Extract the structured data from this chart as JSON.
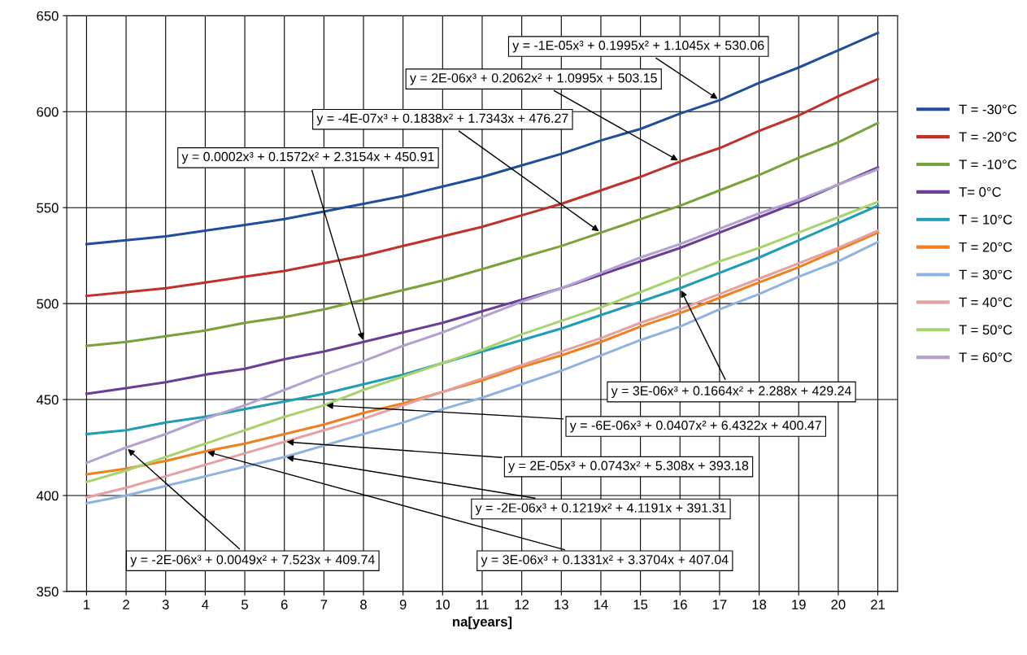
{
  "chart_data": {
    "type": "line",
    "xlabel": "na[years]",
    "categories": [
      "1",
      "2",
      "3",
      "4",
      "5",
      "6",
      "7",
      "8",
      "9",
      "10",
      "11",
      "12",
      "13",
      "14",
      "15",
      "16",
      "17",
      "18",
      "19",
      "20",
      "21"
    ],
    "ylim": [
      350,
      650
    ],
    "yticks": [
      350,
      400,
      450,
      500,
      550,
      600,
      650
    ],
    "grid": true,
    "legend": "right",
    "marker": "none",
    "line_style": "solid",
    "series": [
      {
        "name": "T = -30°C",
        "color": "#1f4e9c",
        "values": [
          531,
          533,
          535,
          538,
          541,
          544,
          548,
          552,
          556,
          561,
          566,
          572,
          578,
          585,
          591,
          599,
          606,
          615,
          623,
          632,
          641
        ]
      },
      {
        "name": "T = -20°C",
        "color": "#c0312b",
        "values": [
          504,
          506,
          508,
          511,
          514,
          517,
          521,
          525,
          530,
          535,
          540,
          546,
          552,
          559,
          566,
          574,
          581,
          590,
          598,
          608,
          617
        ]
      },
      {
        "name": "T = -10°C",
        "color": "#77a33a",
        "values": [
          478,
          480,
          483,
          486,
          490,
          493,
          497,
          502,
          507,
          512,
          518,
          524,
          530,
          537,
          544,
          551,
          559,
          567,
          576,
          584,
          594
        ]
      },
      {
        "name": "T= 0°C",
        "color": "#6a3e98",
        "values": [
          453,
          456,
          459,
          463,
          466,
          471,
          475,
          480,
          485,
          490,
          496,
          502,
          508,
          515,
          522,
          529,
          537,
          545,
          553,
          562,
          571
        ]
      },
      {
        "name": "T = 10°C",
        "color": "#1e9db5",
        "values": [
          432,
          434,
          438,
          441,
          445,
          449,
          453,
          458,
          463,
          469,
          475,
          481,
          487,
          494,
          501,
          508,
          516,
          524,
          533,
          542,
          551
        ]
      },
      {
        "name": "T = 20°C",
        "color": "#f07f1e",
        "values": [
          411,
          414,
          418,
          423,
          427,
          432,
          437,
          443,
          448,
          454,
          460,
          467,
          473,
          480,
          488,
          495,
          503,
          511,
          519,
          528,
          537
        ]
      },
      {
        "name": "T = 30°C",
        "color": "#8fb3e0",
        "values": [
          396,
          400,
          405,
          410,
          415,
          420,
          426,
          432,
          438,
          445,
          451,
          458,
          465,
          473,
          481,
          488,
          497,
          505,
          514,
          522,
          532
        ]
      },
      {
        "name": "T = 40°C",
        "color": "#e6a0a0",
        "values": [
          399,
          404,
          410,
          416,
          422,
          428,
          434,
          440,
          447,
          454,
          461,
          468,
          475,
          482,
          490,
          497,
          505,
          513,
          521,
          529,
          538
        ]
      },
      {
        "name": "T = 50°C",
        "color": "#a8d26e",
        "values": [
          407,
          413,
          420,
          427,
          434,
          441,
          447,
          455,
          462,
          469,
          476,
          484,
          491,
          498,
          506,
          514,
          522,
          529,
          537,
          545,
          553
        ]
      },
      {
        "name": "T = 60°C",
        "color": "#b3a2d0",
        "values": [
          417,
          425,
          432,
          440,
          447,
          455,
          463,
          470,
          478,
          485,
          493,
          501,
          508,
          516,
          524,
          531,
          539,
          547,
          554,
          562,
          570
        ]
      }
    ],
    "annotations": [
      {
        "text": "y = -1E-05x³ + 0.1995x² + 1.1045x + 530.06",
        "x": "17",
        "y": 606
      },
      {
        "text": "y = 2E-06x³ + 0.2062x² + 1.0995x + 503.15",
        "x": "16",
        "y": 574
      },
      {
        "text": "y = -4E-07x³ + 0.1838x² + 1.7343x + 476.27",
        "x": "14",
        "y": 537
      },
      {
        "text": "y = 0.0002x³ + 0.1572x² + 2.3154x + 450.91",
        "x": "8",
        "y": 480
      },
      {
        "text": "y = 3E-06x³ + 0.1664x² + 2.288x + 429.24",
        "x": "16",
        "y": 508
      },
      {
        "text": "y = -6E-06x³ + 0.0407x² + 6.4322x + 400.47",
        "x": "7",
        "y": 447
      },
      {
        "text": "y = 2E-05x³ + 0.0743x² + 5.308x + 393.18",
        "x": "6",
        "y": 428
      },
      {
        "text": "y = -2E-06x³ + 0.1219x² + 4.1191x + 391.31",
        "x": "6",
        "y": 420
      },
      {
        "text": "y = 3E-06x³ + 0.1331x² + 3.3704x + 407.04",
        "x": "4",
        "y": 423
      },
      {
        "text": "y = -2E-06x³ + 0.0049x² + 7.523x + 409.74",
        "x": "2",
        "y": 425
      }
    ]
  }
}
